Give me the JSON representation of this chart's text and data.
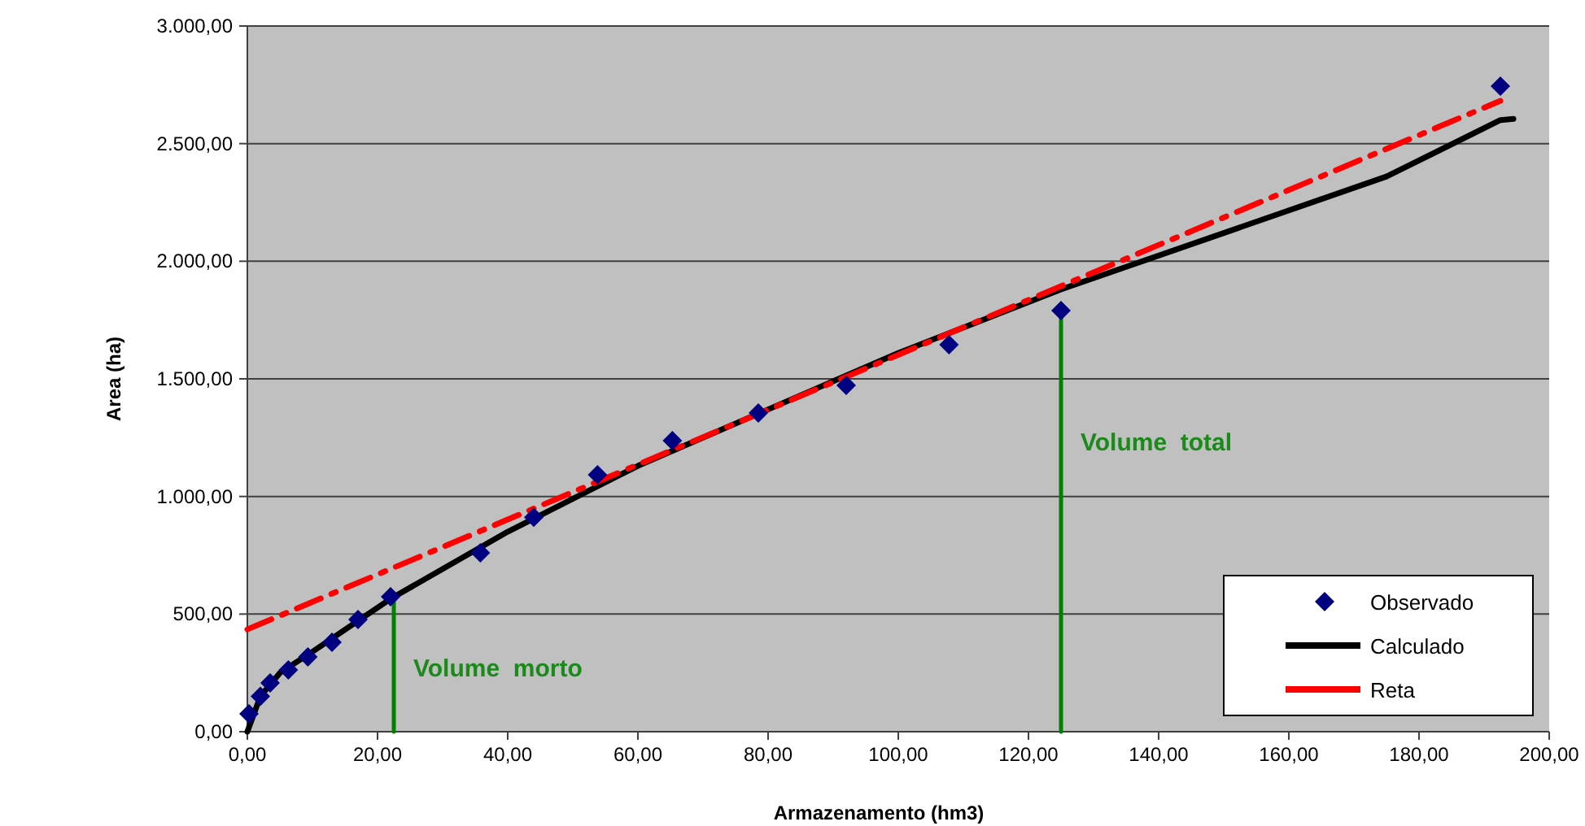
{
  "chart_data": {
    "type": "scatter",
    "xlabel": "Armazenamento (hm3)",
    "ylabel": "Area (ha)",
    "xlim": [
      0,
      200
    ],
    "ylim": [
      0,
      3000
    ],
    "xticks": [
      {
        "value": 0,
        "label": "0,00"
      },
      {
        "value": 20,
        "label": "20,00"
      },
      {
        "value": 40,
        "label": "40,00"
      },
      {
        "value": 60,
        "label": "60,00"
      },
      {
        "value": 80,
        "label": "80,00"
      },
      {
        "value": 100,
        "label": "100,00"
      },
      {
        "value": 120,
        "label": "120,00"
      },
      {
        "value": 140,
        "label": "140,00"
      },
      {
        "value": 160,
        "label": "160,00"
      },
      {
        "value": 180,
        "label": "180,00"
      },
      {
        "value": 200,
        "label": "200,00"
      }
    ],
    "yticks": [
      {
        "value": 0,
        "label": "0,00"
      },
      {
        "value": 500,
        "label": "500,00"
      },
      {
        "value": 1000,
        "label": "1.000,00"
      },
      {
        "value": 1500,
        "label": "1.500,00"
      },
      {
        "value": 2000,
        "label": "2.000,00"
      },
      {
        "value": 2500,
        "label": "2.500,00"
      },
      {
        "value": 3000,
        "label": "3.000,00"
      }
    ],
    "grid": "y",
    "legend": "bottom right",
    "marker": "diamond",
    "series": [
      {
        "name": "Observado",
        "color": "#000080",
        "x": [
          0.25,
          2,
          3.5,
          6.3,
          9.3,
          13,
          17,
          22,
          35.8,
          44,
          53.8,
          65.3,
          78.5,
          92,
          107.8,
          125,
          192.5
        ],
        "values": [
          76,
          150,
          207,
          263,
          318,
          380,
          477,
          574,
          760,
          912,
          1092,
          1237,
          1355,
          1472,
          1645,
          1790,
          2744
        ]
      },
      {
        "name": "Calculado",
        "type": "line",
        "color": "#000000",
        "line_style": "solid",
        "marker": "none",
        "x": [
          0,
          2,
          5,
          10,
          22,
          40,
          60,
          80,
          100,
          125,
          150,
          175,
          192.5,
          194.5
        ],
        "values": [
          0,
          150,
          250,
          340,
          565,
          850,
          1130,
          1370,
          1610,
          1880,
          2120,
          2360,
          2600,
          2605
        ]
      },
      {
        "name": "Reta",
        "type": "line",
        "color": "#ff0000",
        "line_style": "dashed",
        "marker": "none",
        "x": [
          0,
          192.5
        ],
        "values": [
          435,
          2682
        ]
      },
      {
        "type": "line",
        "color": "#008000",
        "line_style": "solid",
        "marker": "none",
        "x": [
          22.5,
          22.5
        ],
        "values": [
          0,
          570
        ]
      },
      {
        "type": "line",
        "color": "#008000",
        "line_style": "solid",
        "marker": "none",
        "x": [
          125,
          125
        ],
        "values": [
          0,
          1790
        ]
      }
    ],
    "annotations": [
      "Volume  morto",
      "Volume  total"
    ]
  }
}
